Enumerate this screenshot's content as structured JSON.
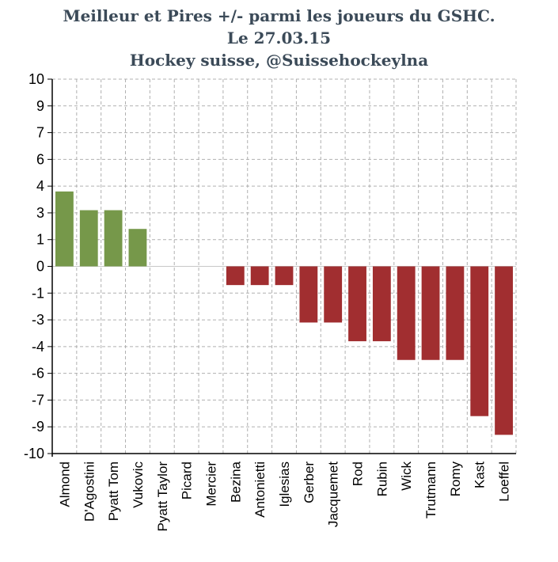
{
  "chart_data": {
    "type": "bar",
    "title": [
      "Meilleur et Pires +/- parmi les joueurs du GSHC.",
      "Le 27.03.15",
      "Hockey suisse, @Suissehockeylna"
    ],
    "xlabel": "",
    "ylabel": "",
    "categories": [
      "Almond",
      "D'Agostini",
      "Pyatt Tom",
      "Vukovic",
      "Pyatt Taylor",
      "Picard",
      "Mercier",
      "Bezina",
      "Antonietti",
      "Iglesias",
      "Gerber",
      "Jacquemet",
      "Rod",
      "Rubin",
      "Wick",
      "Trutmann",
      "Romy",
      "Kast",
      "Loeffel"
    ],
    "values": [
      4,
      3,
      3,
      2,
      0,
      0,
      0,
      -1,
      -1,
      -1,
      -3,
      -3,
      -4,
      -4,
      -5,
      -5,
      -5,
      -8,
      -9
    ],
    "ytick_labels": [
      "10",
      "9",
      "7",
      "6",
      "4",
      "3",
      "1",
      "0",
      "-1",
      "-3",
      "-4",
      "-6",
      "-7",
      "-9",
      "-10"
    ],
    "ylim": [
      -10,
      10
    ],
    "grid": true,
    "colors": {
      "positive": "#76984a",
      "negative": "#a12e30",
      "grid": "#b0b0b0",
      "axis": "#000000"
    }
  }
}
